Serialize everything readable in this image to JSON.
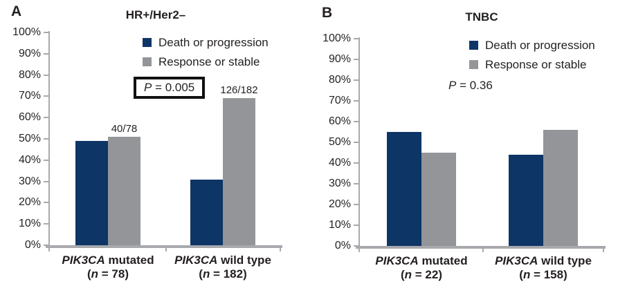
{
  "figure": {
    "background": "#ffffff",
    "text_color": "#231f20",
    "axis_color": "#a7a9ac"
  },
  "chart_data": [
    {
      "type": "bar",
      "panel_letter": "A",
      "title": "HR+/Her2–",
      "y_axis": {
        "min": 0,
        "max": 100,
        "step": 10,
        "suffix": "%"
      },
      "grid": false,
      "legend_position": "top-right",
      "categories": [
        {
          "gene": "PIK3CA",
          "variant": "mutated",
          "n_prefix": "(",
          "n_italic": "n",
          "n_rest": " = 78)"
        },
        {
          "gene": "PIK3CA",
          "variant": "wild type",
          "n_prefix": "(",
          "n_italic": "n",
          "n_rest": " = 182)"
        }
      ],
      "series": [
        {
          "name": "Death or progression",
          "color": "#0d3566",
          "values": [
            49,
            31
          ]
        },
        {
          "name": "Response or stable",
          "color": "#939598",
          "values": [
            51,
            69
          ]
        }
      ],
      "legend": [
        {
          "label": "Death or progression",
          "color": "#0d3566"
        },
        {
          "label": "Response or stable",
          "color": "#939598"
        }
      ],
      "bar_labels": [
        {
          "category": 0,
          "series": 1,
          "text": "40/78"
        },
        {
          "category": 1,
          "series": 1,
          "text": "126/182"
        }
      ],
      "p_value": {
        "italic": "P",
        "rest": " = 0.005",
        "boxed": true
      }
    },
    {
      "type": "bar",
      "panel_letter": "B",
      "title": "TNBC",
      "y_axis": {
        "min": 0,
        "max": 100,
        "step": 10,
        "suffix": "%"
      },
      "grid": false,
      "legend_position": "top-right",
      "categories": [
        {
          "gene": "PIK3CA",
          "variant": "mutated",
          "n_prefix": "(",
          "n_italic": "n",
          "n_rest": " = 22)"
        },
        {
          "gene": "PIK3CA",
          "variant": "wild type",
          "n_prefix": "(",
          "n_italic": "n",
          "n_rest": " = 158)"
        }
      ],
      "series": [
        {
          "name": "Death or progression",
          "color": "#0d3566",
          "values": [
            55,
            44
          ]
        },
        {
          "name": "Response or stable",
          "color": "#939598",
          "values": [
            45,
            56
          ]
        }
      ],
      "legend": [
        {
          "label": "Death or progression",
          "color": "#0d3566"
        },
        {
          "label": "Response or stable",
          "color": "#939598"
        }
      ],
      "bar_labels": [],
      "p_value": {
        "italic": "P",
        "rest": " = 0.36",
        "boxed": false
      }
    }
  ]
}
